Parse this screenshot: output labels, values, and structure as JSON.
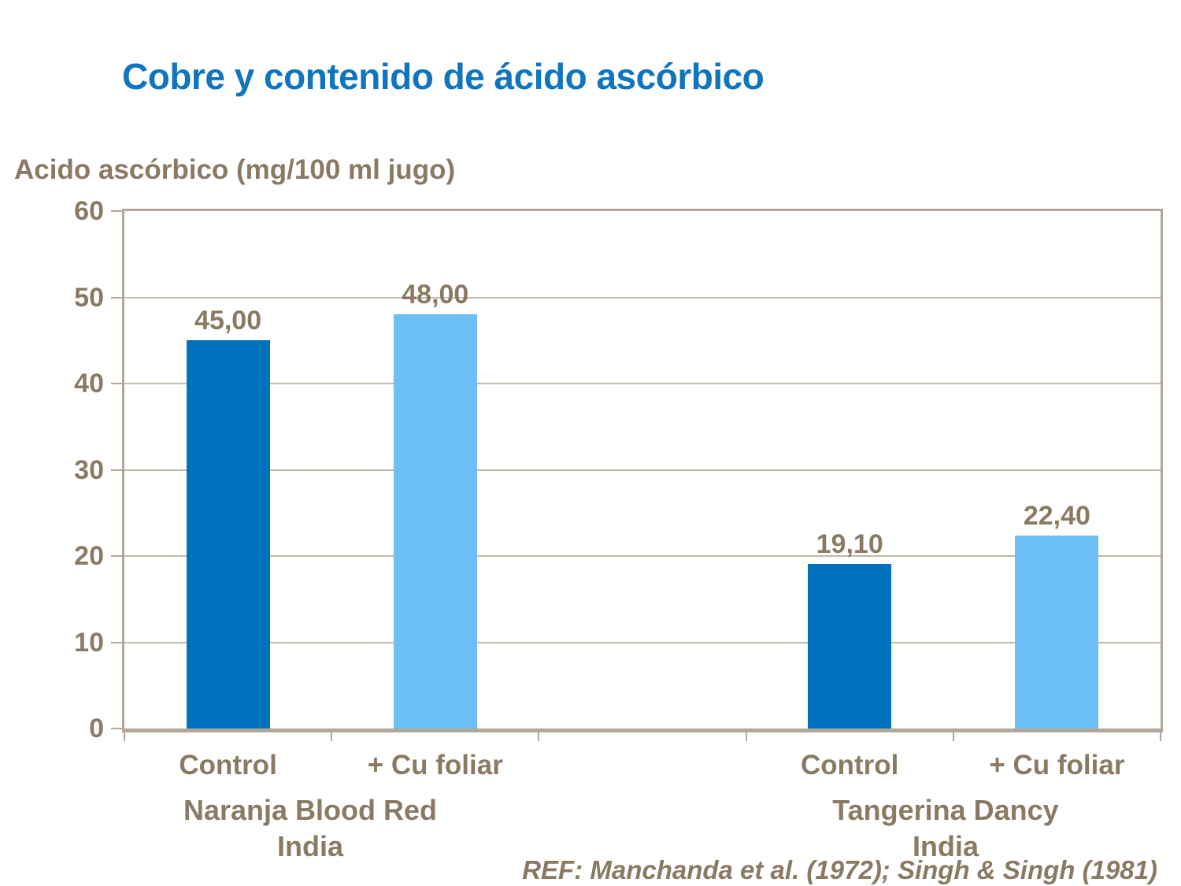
{
  "slide": {
    "title": "Cobre y contenido de ácido ascórbico",
    "reference": "REF: Manchanda et al. (1972); Singh & Singh (1981)"
  },
  "colors": {
    "title_blue": "#0f75be",
    "text_brown": "#8a7a63",
    "dark_blue_bar": "#0071bc",
    "light_blue_bar": "#6dc0f6",
    "frame_tan": "#b3a79a",
    "gridline_tan": "#c2b8ab",
    "background": "#ffffff"
  },
  "chart_data": {
    "type": "bar",
    "title": "Cobre y contenido de ácido ascórbico",
    "ylabel": "Acido ascórbico (mg/100 ml jugo)",
    "xlabel": "",
    "ylim": [
      0,
      60
    ],
    "ytick_interval": 10,
    "ytick_labels": [
      "0",
      "10",
      "20",
      "30",
      "40",
      "50",
      "60"
    ],
    "grid": "horizontal-every-10",
    "legend": "none",
    "slots": 5,
    "bars": [
      {
        "slot": 0,
        "category": "Control",
        "value": 45.0,
        "value_label": "45,00",
        "color_key": "dark_blue_bar"
      },
      {
        "slot": 1,
        "category": "+ Cu foliar",
        "value": 48.0,
        "value_label": "48,00",
        "color_key": "light_blue_bar"
      },
      {
        "slot": 3,
        "category": "Control",
        "value": 19.1,
        "value_label": "19,10",
        "color_key": "dark_blue_bar"
      },
      {
        "slot": 4,
        "category": "+ Cu foliar",
        "value": 22.4,
        "value_label": "22,40",
        "color_key": "light_blue_bar"
      }
    ],
    "groups": [
      {
        "line1": "Naranja Blood Red",
        "line2": "India"
      },
      {
        "line1": "Tangerina Dancy",
        "line2": "India"
      }
    ]
  }
}
